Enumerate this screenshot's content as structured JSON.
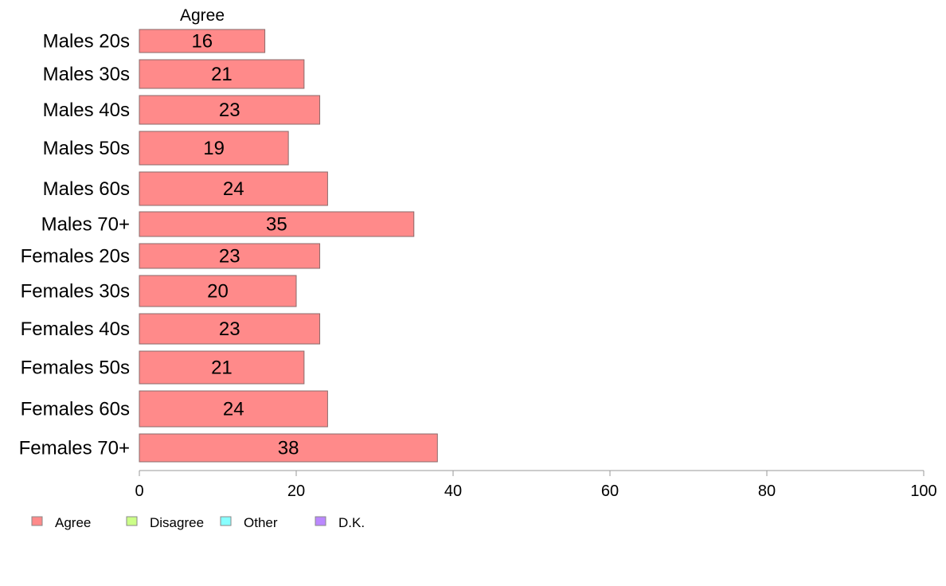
{
  "chart_data": {
    "type": "bar",
    "orientation": "horizontal",
    "stacked": true,
    "column_label": "Agree",
    "categories": [
      "Males 20s",
      "Males 30s",
      "Males 40s",
      "Males 50s",
      "Males 60s",
      "Males 70+",
      "Females 20s",
      "Females 30s",
      "Females 40s",
      "Females 50s",
      "Females 60s",
      "Females 70+"
    ],
    "series": [
      {
        "name": "Agree",
        "color": "#ff8a8a",
        "values": [
          16,
          21,
          23,
          19,
          24,
          35,
          23,
          20,
          23,
          21,
          24,
          38
        ]
      }
    ],
    "xlim": [
      0,
      100
    ],
    "xticks": [
      0,
      20,
      40,
      60,
      80,
      100
    ],
    "grid": false,
    "legend": {
      "placement": "bottom-left",
      "items": [
        {
          "label": "Agree",
          "color": "#ff8a8a"
        },
        {
          "label": "Disagree",
          "color": "#ccff88"
        },
        {
          "label": "Other",
          "color": "#88ffff"
        },
        {
          "label": "D.K.",
          "color": "#bb88ff"
        }
      ]
    }
  }
}
